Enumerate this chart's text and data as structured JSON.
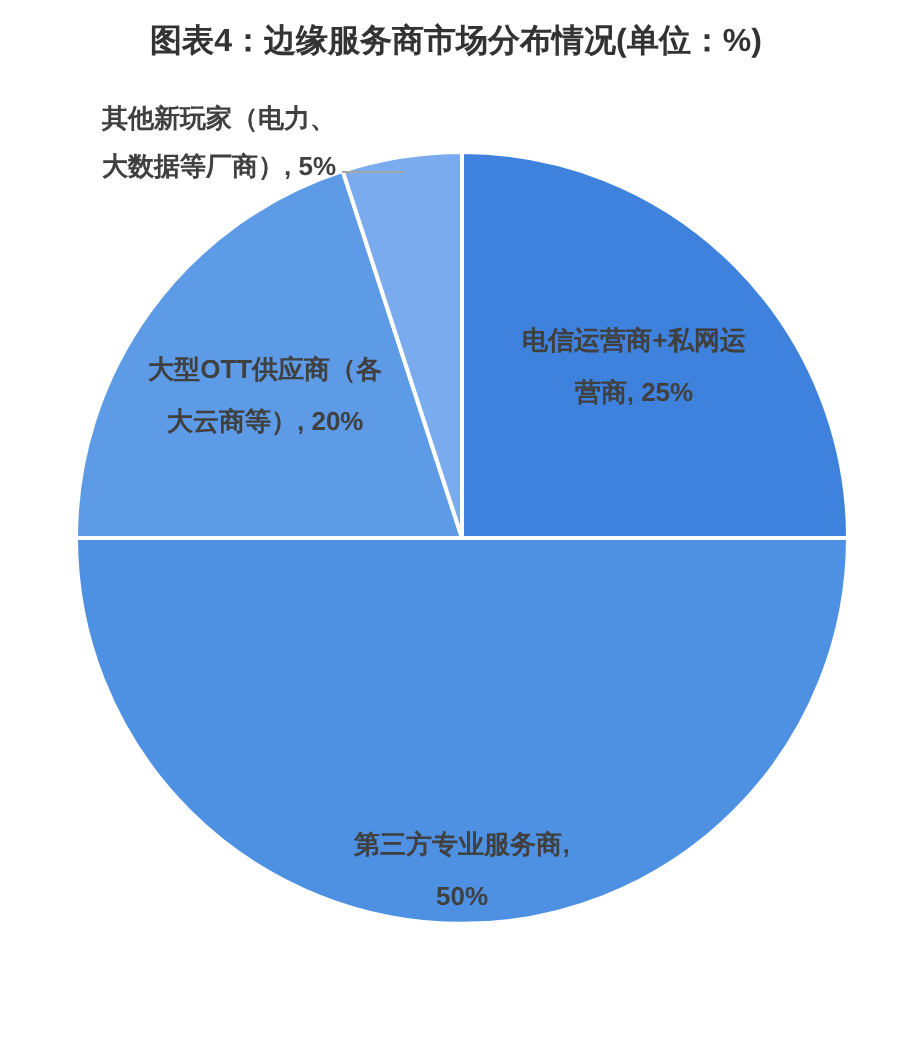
{
  "chart_data": {
    "type": "pie",
    "title": "图表4：边缘服务商市场分布情况(单位：%)",
    "categories": [
      "电信运营商+私网运营商",
      "第三方专业服务商",
      "大型OTT供应商（各大云商等）",
      "其他新玩家（电力、大数据等厂商）"
    ],
    "values": [
      25,
      50,
      20,
      5
    ],
    "colors": [
      "#3e82dd",
      "#4e91e2",
      "#5d9be6",
      "#79abee"
    ],
    "value_labels": [
      ", 25%",
      ", 50%",
      ", 20%",
      ", 5%"
    ]
  }
}
